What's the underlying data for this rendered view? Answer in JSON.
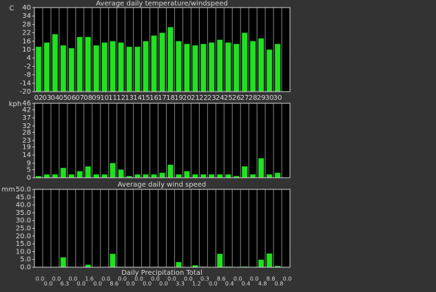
{
  "chart_data": [
    {
      "type": "bar",
      "title": "Average daily temperature/windspeed",
      "y_label": "C",
      "categories": [
        "02",
        "03",
        "04",
        "05",
        "06",
        "07",
        "08",
        "09",
        "10",
        "11",
        "12",
        "13",
        "14",
        "15",
        "16",
        "17",
        "18",
        "19",
        "20",
        "21",
        "22",
        "23",
        "24",
        "25",
        "26",
        "27",
        "28",
        "29",
        "30",
        "30"
      ],
      "values": [
        12,
        15,
        21,
        13,
        11,
        19,
        19,
        13,
        15,
        16,
        15,
        12,
        12,
        16,
        20,
        22,
        26,
        16,
        14,
        13,
        14,
        15,
        17,
        15,
        14,
        22,
        16,
        18,
        10,
        14
      ],
      "color": "#22e022",
      "ylim": [
        -20,
        40
      ],
      "yticks": [
        40,
        34,
        28,
        22,
        16,
        10,
        4,
        -2,
        -8,
        -14,
        -20
      ]
    },
    {
      "type": "bar",
      "title": "Average daily wind speed",
      "y_label": "kph",
      "values": [
        1,
        2,
        2,
        6,
        2,
        4,
        7,
        2,
        2,
        9,
        5,
        1,
        2,
        2,
        2,
        3,
        8,
        2,
        4,
        2,
        2,
        2,
        2,
        2,
        1,
        7,
        2,
        12,
        2,
        3
      ],
      "color": "#22e022",
      "ylim": [
        0,
        46
      ],
      "yticks": [
        46,
        42,
        37,
        32,
        28,
        23,
        19,
        14,
        9,
        5,
        0
      ]
    },
    {
      "type": "bar",
      "title": "Daily Precipitation Total",
      "y_label": "mm",
      "values": [
        0,
        0,
        0,
        6.3,
        0,
        0,
        1.6,
        0,
        0,
        8.6,
        0,
        0,
        0,
        0,
        0,
        0,
        0,
        3.3,
        0,
        1.2,
        0.3,
        0,
        8.6,
        0.4,
        0,
        0.4,
        0,
        4.8,
        8.8,
        0.8,
        0
      ],
      "value_labels": [
        "0.0",
        "0.0",
        "0.0",
        "6.3",
        "0.0",
        "0.0",
        "1.6",
        "0.0",
        "0.0",
        "8.6",
        "0.0",
        "0.0",
        "0.0",
        "0.0",
        "0.0",
        "0.0",
        "0.0",
        "3.3",
        "0.0",
        "1.2",
        "0.3",
        "0.0",
        "8.6",
        "0.4",
        "0.0",
        "0.4",
        "0.0",
        "4.8",
        "8.8",
        "0.8",
        "0.0"
      ],
      "color": "#22e022",
      "ylim": [
        0,
        50
      ],
      "yticks": [
        {
          "value": 50,
          "label": "50.0"
        },
        {
          "value": 45,
          "label": "45.0"
        },
        {
          "value": 40,
          "label": "40.0"
        },
        {
          "value": 35,
          "label": "35.0"
        },
        {
          "value": 30,
          "label": "30.0"
        },
        {
          "value": 25,
          "label": "25.0"
        },
        {
          "value": 20,
          "label": "20.0"
        },
        {
          "value": 15,
          "label": "15.0"
        },
        {
          "value": 10,
          "label": "10.0"
        },
        {
          "value": 5,
          "label": "5.0"
        },
        {
          "value": 0,
          "label": "0.0"
        }
      ]
    }
  ]
}
